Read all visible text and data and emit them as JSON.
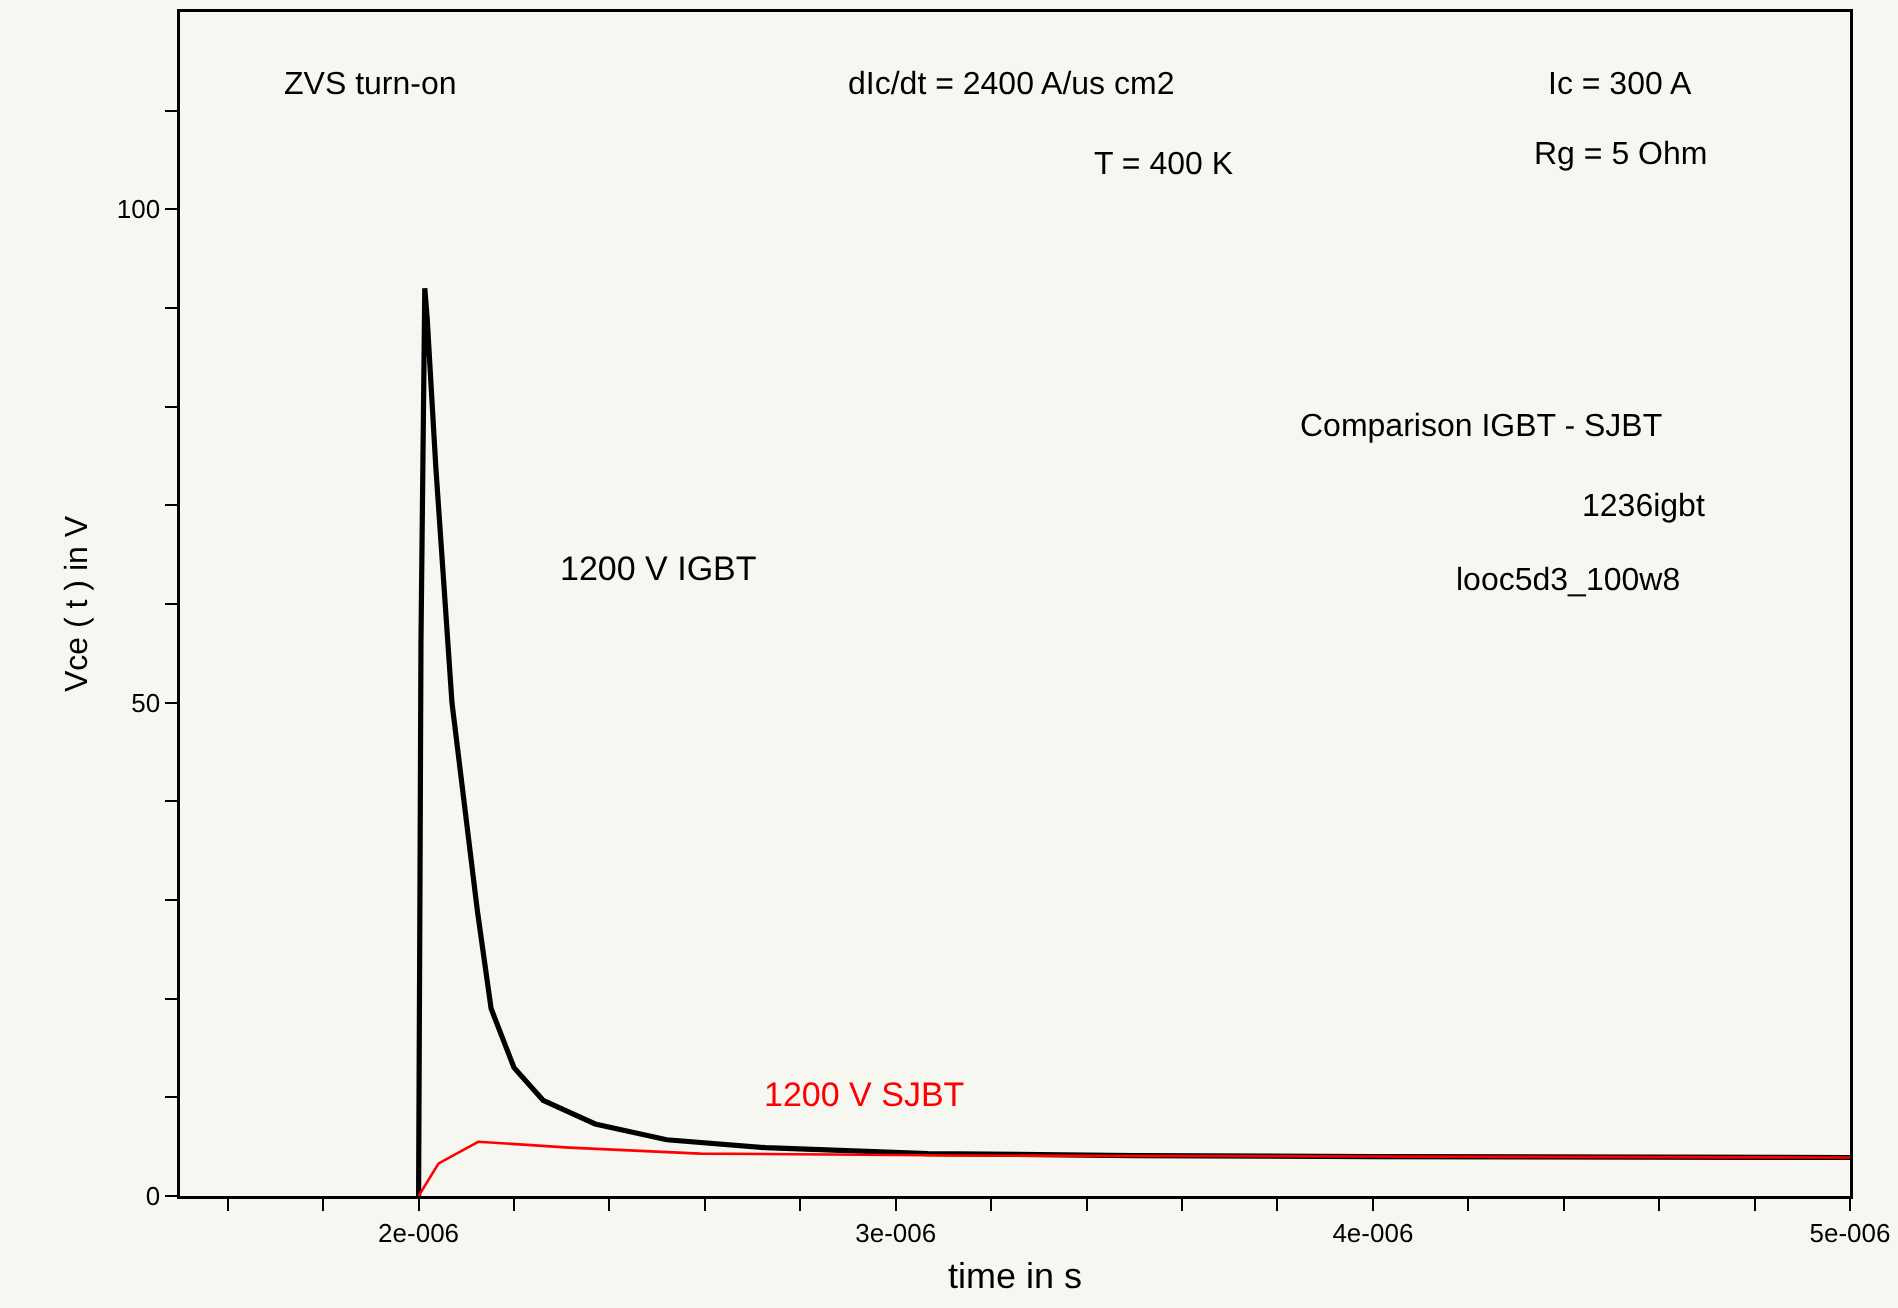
{
  "chart_data": {
    "type": "line",
    "xlabel": "time in s",
    "ylabel": "Vce ( t ) in V",
    "xlim": [
      1.5e-06,
      5e-06
    ],
    "xticks": [
      {
        "value": 1.6e-06,
        "label": null
      },
      {
        "value": 1.8e-06,
        "label": null
      },
      {
        "value": 2e-06,
        "label": "2e-006"
      },
      {
        "value": 2.2e-06,
        "label": null
      },
      {
        "value": 2.4e-06,
        "label": null
      },
      {
        "value": 2.6e-06,
        "label": null
      },
      {
        "value": 2.8e-06,
        "label": null
      },
      {
        "value": 3e-06,
        "label": "3e-006"
      },
      {
        "value": 3.2e-06,
        "label": null
      },
      {
        "value": 3.4e-06,
        "label": null
      },
      {
        "value": 3.6e-06,
        "label": null
      },
      {
        "value": 3.8e-06,
        "label": null
      },
      {
        "value": 4e-06,
        "label": "4e-006"
      },
      {
        "value": 4.2e-06,
        "label": null
      },
      {
        "value": 4.4e-06,
        "label": null
      },
      {
        "value": 4.6e-06,
        "label": null
      },
      {
        "value": 4.8e-06,
        "label": null
      },
      {
        "value": 5e-06,
        "label": "5e-006"
      }
    ],
    "ylim": [
      0,
      120
    ],
    "yticks": [
      0,
      {
        "value": 10,
        "label": null
      },
      {
        "value": 20,
        "label": null
      },
      {
        "value": 30,
        "label": null
      },
      {
        "value": 40,
        "label": null
      },
      50,
      {
        "value": 60,
        "label": null
      },
      {
        "value": 70,
        "label": null
      },
      {
        "value": 80,
        "label": null
      },
      {
        "value": 90,
        "label": null
      },
      100,
      {
        "value": 110,
        "label": null
      }
    ],
    "grid": false,
    "legend": false,
    "marker": "none",
    "line_style": "solid",
    "series": [
      {
        "name": "1200 V IGBT",
        "color": "#000000",
        "x": [
          2e-06,
          2.003e-06,
          2.005e-06,
          2.013e-06,
          2.018e-06,
          2.036e-06,
          2.07e-06,
          2.123e-06,
          2.152e-06,
          2.2e-06,
          2.261e-06,
          2.37e-06,
          2.52e-06,
          2.727e-06,
          3.067e-06,
          3.5e-06,
          4e-06,
          5e-06
        ],
        "values": [
          0,
          32,
          56,
          92,
          89,
          74,
          50,
          29,
          19,
          13,
          9.7,
          7.3,
          5.7,
          4.9,
          4.3,
          4.1,
          4.0,
          3.9
        ]
      },
      {
        "name": "1200 V SJBT",
        "color": "#ff0000",
        "x": [
          2e-06,
          2.042e-06,
          2.125e-06,
          2.316e-06,
          2.59e-06,
          3.14e-06,
          4e-06,
          5e-06
        ],
        "values": [
          0,
          3.3,
          5.5,
          4.9,
          4.3,
          4.1,
          4.0,
          3.9
        ]
      }
    ],
    "annotations": [
      "ZVS turn-on",
      "dIc/dt = 2400 A/us cm2",
      "Ic = 300 A",
      "T = 400 K",
      "Rg = 5 Ohm",
      "Comparison IGBT - SJBT",
      "1236igbt",
      "looc5d3_100w8"
    ]
  }
}
